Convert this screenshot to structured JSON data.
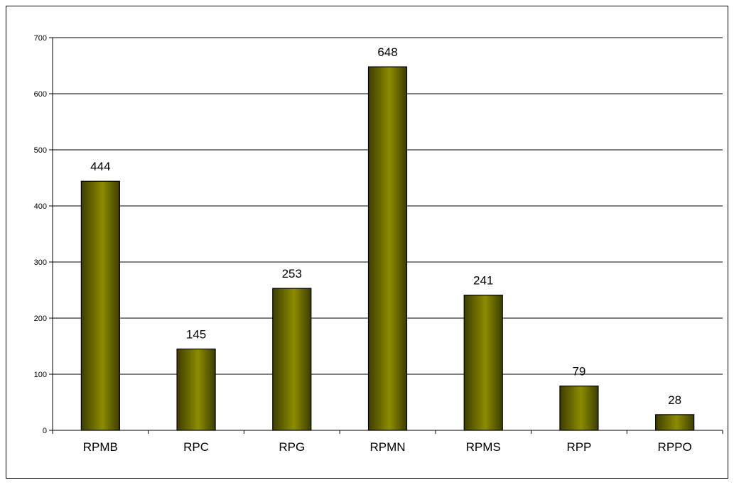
{
  "chart_data": {
    "type": "bar",
    "categories": [
      "RPMB",
      "RPC",
      "RPG",
      "RPMN",
      "RPMS",
      "RPP",
      "RPPO"
    ],
    "values": [
      444,
      145,
      253,
      648,
      241,
      79,
      28
    ],
    "data_labels": [
      "444",
      "145",
      "253",
      "648",
      "241",
      "79",
      "28"
    ],
    "yticks": [
      0,
      100,
      200,
      300,
      400,
      500,
      600,
      700
    ],
    "ylim": [
      0,
      700
    ],
    "grid": true,
    "legend": "none",
    "title": "",
    "xlabel": "",
    "ylabel": "",
    "colors": {
      "bar_dark": "#3d3d00",
      "bar_light": "#8c8c00",
      "bar_mid": "#707000",
      "gridline": "#000000"
    }
  }
}
